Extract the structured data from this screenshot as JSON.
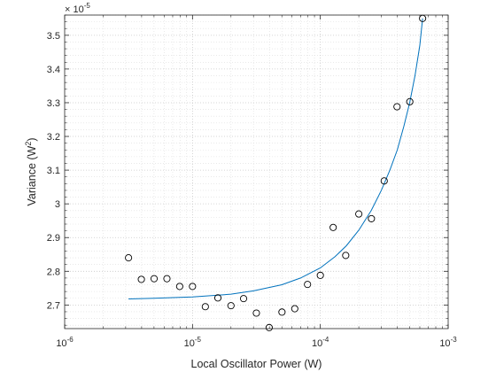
{
  "chart_data": {
    "type": "scatter",
    "xlabel": "Local Oscillator Power (W)",
    "ylabel_base": "Variance (W",
    "ylabel_sup": "2",
    "ylabel_end": ")",
    "x_scale": "log",
    "xlim": [
      1e-06,
      0.001
    ],
    "ylim": [
      2.63e-05,
      3.56e-05
    ],
    "y_multiplier_label": "× 10",
    "y_multiplier_exp": "-5",
    "grid": true,
    "grid_minor": true,
    "x_ticks": [
      {
        "value": 1e-06,
        "base": "10",
        "exp": "-6"
      },
      {
        "value": 1e-05,
        "base": "10",
        "exp": "-5"
      },
      {
        "value": 0.0001,
        "base": "10",
        "exp": "-4"
      },
      {
        "value": 0.001,
        "base": "10",
        "exp": "-3"
      }
    ],
    "y_ticks": [
      {
        "value": 2.7e-05,
        "label": "2.7"
      },
      {
        "value": 2.8e-05,
        "label": "2.8"
      },
      {
        "value": 2.9e-05,
        "label": "2.9"
      },
      {
        "value": 3e-05,
        "label": "3"
      },
      {
        "value": 3.1e-05,
        "label": "3.1"
      },
      {
        "value": 3.2e-05,
        "label": "3.2"
      },
      {
        "value": 3.3e-05,
        "label": "3.3"
      },
      {
        "value": 3.4e-05,
        "label": "3.4"
      },
      {
        "value": 3.5e-05,
        "label": "3.5"
      }
    ],
    "series": [
      {
        "type": "scatter",
        "marker": "open-circle",
        "color": "#000000",
        "x": [
          3.16e-06,
          3.98e-06,
          5.01e-06,
          6.31e-06,
          7.94e-06,
          1e-05,
          1.26e-05,
          1.58e-05,
          2e-05,
          2.51e-05,
          3.16e-05,
          3.98e-05,
          5.01e-05,
          6.31e-05,
          7.94e-05,
          0.0001,
          0.000126,
          0.000158,
          0.0002,
          0.000251,
          0.000316,
          0.000398,
          0.000501,
          0.000631
        ],
        "y": [
          2.84e-05,
          2.776e-05,
          2.778e-05,
          2.778e-05,
          2.755e-05,
          2.755e-05,
          2.695e-05,
          2.721e-05,
          2.698e-05,
          2.719e-05,
          2.676e-05,
          2.633e-05,
          2.679e-05,
          2.689e-05,
          2.761e-05,
          2.788e-05,
          2.93e-05,
          2.847e-05,
          2.97e-05,
          2.956e-05,
          3.068e-05,
          3.288e-05,
          3.303e-05,
          3.55e-05
        ]
      },
      {
        "type": "line",
        "color": "#0072bd",
        "x": [
          3.16e-06,
          5e-06,
          1e-05,
          2e-05,
          3e-05,
          5e-05,
          7e-05,
          0.0001,
          0.00013,
          0.00016,
          0.0002,
          0.00025,
          0.0003,
          0.00035,
          0.0004,
          0.00045,
          0.0005,
          0.00055,
          0.0006,
          0.000631
        ],
        "y": [
          2.718e-05,
          2.72e-05,
          2.724e-05,
          2.732e-05,
          2.742e-05,
          2.76e-05,
          2.78e-05,
          2.81e-05,
          2.843e-05,
          2.876e-05,
          2.922e-05,
          2.98e-05,
          3.04e-05,
          3.1e-05,
          3.16e-05,
          3.23e-05,
          3.3e-05,
          3.38e-05,
          3.47e-05,
          3.55e-05
        ]
      }
    ]
  }
}
